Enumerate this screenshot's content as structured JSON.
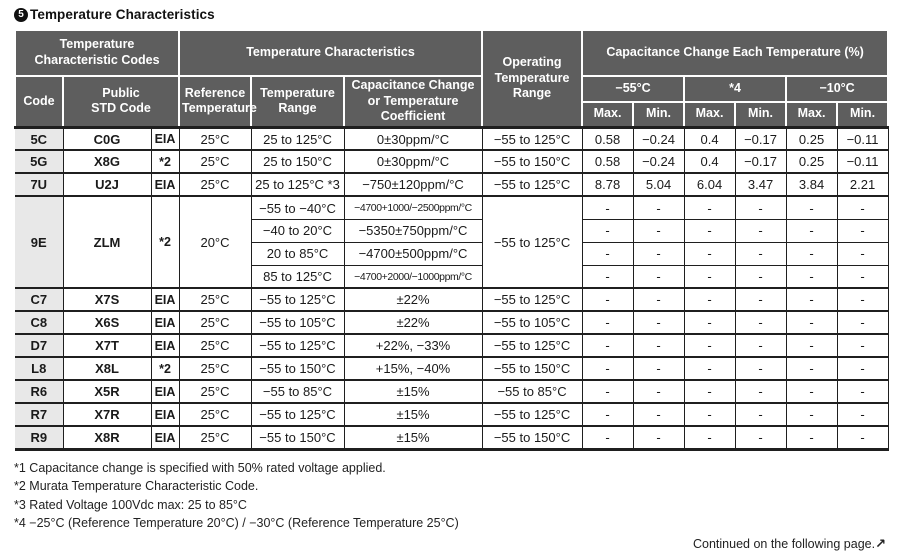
{
  "title": {
    "badge": "5",
    "text": "Temperature Characteristics"
  },
  "table": {
    "header": {
      "group_codes": "Temperature\nCharacteristic Codes",
      "group_chars": "Temperature Characteristics",
      "op_range": "Operating\nTemperature\nRange",
      "group_capchange": "Capacitance Change Each Temperature (%)",
      "code": "Code",
      "public_std": "Public\nSTD Code",
      "ref_temp": "Reference\nTemperature",
      "temp_range": "Temperature\nRange",
      "cap_change": "Capacitance Change\nor Temperature\nCoefficient",
      "temp_cols": [
        "−55°C",
        "*4",
        "−10°C"
      ],
      "max_label": "Max.",
      "min_label": "Min."
    },
    "rows": [
      {
        "code": "5C",
        "std": "C0G",
        "qual": "EIA",
        "ref": "25°C",
        "range": "25 to 125°C",
        "coeff": "0±30ppm/°C",
        "op": "−55 to 125°C",
        "vals": [
          "0.58",
          "−0.24",
          "0.4",
          "−0.17",
          "0.25",
          "−0.11"
        ]
      },
      {
        "code": "5G",
        "std": "X8G",
        "qual": "*2",
        "ref": "25°C",
        "range": "25 to 150°C",
        "coeff": "0±30ppm/°C",
        "op": "−55 to 150°C",
        "vals": [
          "0.58",
          "−0.24",
          "0.4",
          "−0.17",
          "0.25",
          "−0.11"
        ]
      },
      {
        "code": "7U",
        "std": "U2J",
        "qual": "EIA",
        "ref": "25°C",
        "range": "25 to 125°C *3",
        "coeff": "−750±120ppm/°C",
        "op": "−55 to 125°C",
        "vals": [
          "8.78",
          "5.04",
          "6.04",
          "3.47",
          "3.84",
          "2.21"
        ]
      },
      {
        "code": "9E",
        "std": "ZLM",
        "qual": "*2",
        "ref": "20°C",
        "op": "−55 to 125°C",
        "sub": [
          {
            "range": "−55 to −40°C",
            "coeff": "−4700+1000/−2500ppm/°C",
            "condensed": true,
            "vals": [
              "-",
              "-",
              "-",
              "-",
              "-",
              "-"
            ]
          },
          {
            "range": "−40 to 20°C",
            "coeff": "−5350±750ppm/°C",
            "condensed": false,
            "vals": [
              "-",
              "-",
              "-",
              "-",
              "-",
              "-"
            ]
          },
          {
            "range": "20 to 85°C",
            "coeff": "−4700±500ppm/°C",
            "condensed": false,
            "vals": [
              "-",
              "-",
              "-",
              "-",
              "-",
              "-"
            ]
          },
          {
            "range": "85 to 125°C",
            "coeff": "−4700+2000/−1000ppm/°C",
            "condensed": true,
            "vals": [
              "-",
              "-",
              "-",
              "-",
              "-",
              "-"
            ]
          }
        ]
      },
      {
        "code": "C7",
        "std": "X7S",
        "qual": "EIA",
        "ref": "25°C",
        "range": "−55 to 125°C",
        "coeff": "±22%",
        "op": "−55 to 125°C",
        "vals": [
          "-",
          "-",
          "-",
          "-",
          "-",
          "-"
        ]
      },
      {
        "code": "C8",
        "std": "X6S",
        "qual": "EIA",
        "ref": "25°C",
        "range": "−55 to 105°C",
        "coeff": "±22%",
        "op": "−55 to 105°C",
        "vals": [
          "-",
          "-",
          "-",
          "-",
          "-",
          "-"
        ]
      },
      {
        "code": "D7",
        "std": "X7T",
        "qual": "EIA",
        "ref": "25°C",
        "range": "−55 to 125°C",
        "coeff": "+22%, −33%",
        "op": "−55 to 125°C",
        "vals": [
          "-",
          "-",
          "-",
          "-",
          "-",
          "-"
        ]
      },
      {
        "code": "L8",
        "std": "X8L",
        "qual": "*2",
        "ref": "25°C",
        "range": "−55 to 150°C",
        "coeff": "+15%, −40%",
        "op": "−55 to 150°C",
        "vals": [
          "-",
          "-",
          "-",
          "-",
          "-",
          "-"
        ]
      },
      {
        "code": "R6",
        "std": "X5R",
        "qual": "EIA",
        "ref": "25°C",
        "range": "−55 to 85°C",
        "coeff": "±15%",
        "op": "−55 to 85°C",
        "vals": [
          "-",
          "-",
          "-",
          "-",
          "-",
          "-"
        ]
      },
      {
        "code": "R7",
        "std": "X7R",
        "qual": "EIA",
        "ref": "25°C",
        "range": "−55 to 125°C",
        "coeff": "±15%",
        "op": "−55 to 125°C",
        "vals": [
          "-",
          "-",
          "-",
          "-",
          "-",
          "-"
        ]
      },
      {
        "code": "R9",
        "std": "X8R",
        "qual": "EIA",
        "ref": "25°C",
        "range": "−55 to 150°C",
        "coeff": "±15%",
        "op": "−55 to 150°C",
        "vals": [
          "-",
          "-",
          "-",
          "-",
          "-",
          "-"
        ]
      }
    ]
  },
  "footnotes": [
    "*1 Capacitance change is specified with 50% rated voltage applied.",
    "*2 Murata Temperature Characteristic Code.",
    "*3 Rated Voltage 100Vdc max: 25 to 85°C",
    "*4 −25°C (Reference Temperature 20°C) / −30°C (Reference Temperature 25°C)"
  ],
  "continued": {
    "text": "Continued on the following page.",
    "arrow": "↗"
  },
  "colors": {
    "header_bg": "#5e5e5e",
    "code_col_bg": "#e8e8e8",
    "border": "#1f1f1f"
  }
}
